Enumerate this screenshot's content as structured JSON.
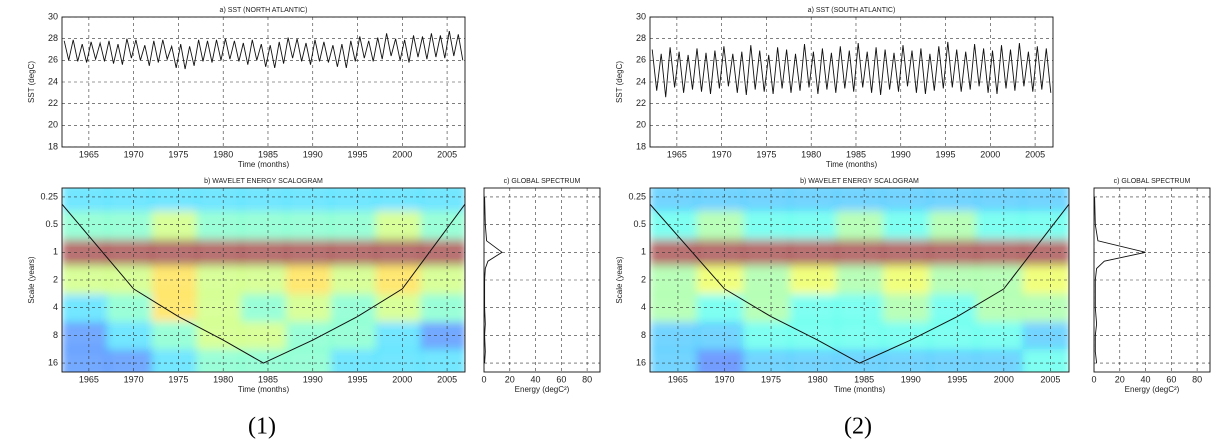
{
  "figure_labels": [
    "(1)",
    "(2)"
  ],
  "chart_data": [
    {
      "type": "line",
      "title": "a) SST (NORTH ATLANTIC)",
      "x_label": "Time (months)",
      "y_label": "SST (degC)",
      "xlim": [
        1962,
        2007
      ],
      "xticks": [
        1965,
        1970,
        1975,
        1980,
        1985,
        1990,
        1995,
        2000,
        2005
      ],
      "ylim": [
        18,
        30
      ],
      "yticks": [
        18,
        20,
        22,
        24,
        26,
        28,
        30
      ],
      "grid": true,
      "color": "#111111",
      "x": [
        1962.25,
        1962.75,
        1963.25,
        1963.75,
        1964.25,
        1964.75,
        1965.25,
        1965.75,
        1966.25,
        1966.75,
        1967.25,
        1967.75,
        1968.25,
        1968.75,
        1969.25,
        1969.75,
        1970.25,
        1970.75,
        1971.25,
        1971.75,
        1972.25,
        1972.75,
        1973.25,
        1973.75,
        1974.25,
        1974.75,
        1975.25,
        1975.75,
        1976.25,
        1976.75,
        1977.25,
        1977.75,
        1978.25,
        1978.75,
        1979.25,
        1979.75,
        1980.25,
        1980.75,
        1981.25,
        1981.75,
        1982.25,
        1982.75,
        1983.25,
        1983.75,
        1984.25,
        1984.75,
        1985.25,
        1985.75,
        1986.25,
        1986.75,
        1987.25,
        1987.75,
        1988.25,
        1988.75,
        1989.25,
        1989.75,
        1990.25,
        1990.75,
        1991.25,
        1991.75,
        1992.25,
        1992.75,
        1993.25,
        1993.75,
        1994.25,
        1994.75,
        1995.25,
        1995.75,
        1996.25,
        1996.75,
        1997.25,
        1997.75,
        1998.25,
        1998.75,
        1999.25,
        1999.75,
        2000.25,
        2000.75,
        2001.25,
        2001.75,
        2002.25,
        2002.75,
        2003.25,
        2003.75,
        2004.25,
        2004.75,
        2005.25,
        2005.75,
        2006.25,
        2006.75
      ],
      "values": [
        27.8,
        26.0,
        27.9,
        25.9,
        27.5,
        25.8,
        27.7,
        26.1,
        27.6,
        25.9,
        27.8,
        25.7,
        27.5,
        25.6,
        28.0,
        26.2,
        27.9,
        26.0,
        27.4,
        25.5,
        27.8,
        25.8,
        27.9,
        26.1,
        27.3,
        25.3,
        27.5,
        25.2,
        27.3,
        25.5,
        27.9,
        25.9,
        27.8,
        25.8,
        27.9,
        26.0,
        28.0,
        26.1,
        27.8,
        25.9,
        27.6,
        25.6,
        27.9,
        26.0,
        27.5,
        25.4,
        27.4,
        25.3,
        27.7,
        25.7,
        28.1,
        26.2,
        28.0,
        25.9,
        27.6,
        25.6,
        27.9,
        25.9,
        27.7,
        25.8,
        27.4,
        25.4,
        27.5,
        25.3,
        27.8,
        25.9,
        28.2,
        26.2,
        27.8,
        25.9,
        28.1,
        26.1,
        28.5,
        26.4,
        28.0,
        26.0,
        27.9,
        25.8,
        28.3,
        26.3,
        28.2,
        26.1,
        28.5,
        26.3,
        28.3,
        26.2,
        28.7,
        26.4,
        28.4,
        26.0
      ]
    },
    {
      "type": "heatmap",
      "title": "b) WAVELET ENERGY SCALOGRAM",
      "x_label": "Time (months)",
      "y_label": "Scale (years)",
      "xlim": [
        1962,
        2007
      ],
      "xticks": [
        1965,
        1970,
        1975,
        1980,
        1985,
        1990,
        1995,
        2000,
        2005
      ],
      "ylim": [
        0.2,
        20
      ],
      "yticks": [
        0.25,
        0.5,
        1,
        2,
        4,
        8,
        16
      ],
      "log_y": true,
      "y_reversed": true,
      "grid": true,
      "x": [
        1964.5,
        1969.5,
        1974.5,
        1979.5,
        1984.5,
        1989.5,
        1994.5,
        1999.5,
        2004.5
      ],
      "y": [
        0.25,
        0.5,
        1,
        2,
        4,
        8,
        16
      ],
      "z": [
        [
          3,
          3,
          3,
          3,
          3,
          3,
          3,
          3,
          3
        ],
        [
          4,
          4,
          5,
          4,
          4,
          4,
          4,
          5,
          4
        ],
        [
          9,
          9,
          9,
          9,
          9,
          9,
          9,
          9,
          9
        ],
        [
          5,
          5,
          6,
          5,
          5,
          6,
          5,
          6,
          5
        ],
        [
          3,
          4,
          6,
          5,
          4,
          5,
          4,
          5,
          4
        ],
        [
          2,
          3,
          4,
          5,
          5,
          4,
          4,
          3,
          2
        ],
        [
          2,
          2,
          3,
          4,
          4,
          4,
          3,
          3,
          3
        ]
      ],
      "cone_of_influence": {
        "x": [
          1962,
          1970,
          1975,
          1980,
          1984.5,
          1990,
          1995,
          2000,
          2007
        ],
        "y": [
          0.3,
          2.5,
          5,
          9,
          16,
          9,
          5,
          2.5,
          0.3
        ]
      }
    },
    {
      "type": "spectrum",
      "title": "c) GLOBAL SPECTRUM",
      "x_label": "Energy (degC²)",
      "xlim": [
        0,
        90
      ],
      "xticks": [
        0,
        20,
        40,
        60,
        80
      ],
      "ylim": [
        0.2,
        20
      ],
      "log_y": true,
      "y_reversed": true,
      "grid": true,
      "color": "#111111",
      "scales": [
        0.25,
        0.5,
        0.75,
        1,
        1.25,
        1.5,
        2,
        3,
        4,
        6,
        8,
        12,
        16
      ],
      "values": [
        0.5,
        1,
        2,
        14,
        3,
        1,
        0.5,
        0.5,
        0.5,
        1,
        0.5,
        1,
        0.5
      ]
    },
    {
      "type": "line",
      "title": "a) SST (SOUTH ATLANTIC)",
      "x_label": "Time (months)",
      "y_label": "SST (degC)",
      "xlim": [
        1962,
        2007
      ],
      "xticks": [
        1965,
        1970,
        1975,
        1980,
        1985,
        1990,
        1995,
        2000,
        2005
      ],
      "ylim": [
        18,
        30
      ],
      "yticks": [
        18,
        20,
        22,
        24,
        26,
        28,
        30
      ],
      "grid": true,
      "color": "#111111",
      "x": [
        1962.25,
        1962.75,
        1963.25,
        1963.75,
        1964.25,
        1964.75,
        1965.25,
        1965.75,
        1966.25,
        1966.75,
        1967.25,
        1967.75,
        1968.25,
        1968.75,
        1969.25,
        1969.75,
        1970.25,
        1970.75,
        1971.25,
        1971.75,
        1972.25,
        1972.75,
        1973.25,
        1973.75,
        1974.25,
        1974.75,
        1975.25,
        1975.75,
        1976.25,
        1976.75,
        1977.25,
        1977.75,
        1978.25,
        1978.75,
        1979.25,
        1979.75,
        1980.25,
        1980.75,
        1981.25,
        1981.75,
        1982.25,
        1982.75,
        1983.25,
        1983.75,
        1984.25,
        1984.75,
        1985.25,
        1985.75,
        1986.25,
        1986.75,
        1987.25,
        1987.75,
        1988.25,
        1988.75,
        1989.25,
        1989.75,
        1990.25,
        1990.75,
        1991.25,
        1991.75,
        1992.25,
        1992.75,
        1993.25,
        1993.75,
        1994.25,
        1994.75,
        1995.25,
        1995.75,
        1996.25,
        1996.75,
        1997.25,
        1997.75,
        1998.25,
        1998.75,
        1999.25,
        1999.75,
        2000.25,
        2000.75,
        2001.25,
        2001.75,
        2002.25,
        2002.75,
        2003.25,
        2003.75,
        2004.25,
        2004.75,
        2005.25,
        2005.75,
        2006.25,
        2006.75
      ],
      "values": [
        27.0,
        23.2,
        26.6,
        22.6,
        27.2,
        23.5,
        26.8,
        23.0,
        26.5,
        23.3,
        27.1,
        23.1,
        26.7,
        22.9,
        26.9,
        23.4,
        27.3,
        23.6,
        26.6,
        23.0,
        26.8,
        22.8,
        27.4,
        23.3,
        26.9,
        23.1,
        26.5,
        22.9,
        27.2,
        23.4,
        27.0,
        23.0,
        26.6,
        23.2,
        27.5,
        23.5,
        26.8,
        22.9,
        27.1,
        23.3,
        26.7,
        23.0,
        27.3,
        23.4,
        26.9,
        23.1,
        27.6,
        23.5,
        26.8,
        23.0,
        27.2,
        22.8,
        27.0,
        23.3,
        26.7,
        23.1,
        27.4,
        23.6,
        26.9,
        23.0,
        27.1,
        22.9,
        26.6,
        23.2,
        27.3,
        23.4,
        27.7,
        23.5,
        27.0,
        23.1,
        26.8,
        23.3,
        27.5,
        23.6,
        27.1,
        23.0,
        26.9,
        22.9,
        27.4,
        23.4,
        27.0,
        23.2,
        27.6,
        23.6,
        26.8,
        23.1,
        27.3,
        23.3,
        27.1,
        23.0
      ]
    },
    {
      "type": "heatmap",
      "title": "b) WAVELET ENERGY SCALOGRAM",
      "x_label": "Time (months)",
      "y_label": "Scale (years)",
      "xlim": [
        1962,
        2007
      ],
      "xticks": [
        1965,
        1970,
        1975,
        1980,
        1985,
        1990,
        1995,
        2000,
        2005
      ],
      "ylim": [
        0.2,
        20
      ],
      "yticks": [
        0.25,
        0.5,
        1,
        2,
        4,
        8,
        16
      ],
      "log_y": true,
      "y_reversed": true,
      "grid": true,
      "x": [
        1964.5,
        1969.5,
        1974.5,
        1979.5,
        1984.5,
        1989.5,
        1994.5,
        1999.5,
        2004.5
      ],
      "y": [
        0.25,
        0.5,
        1,
        2,
        4,
        8,
        16
      ],
      "z": [
        [
          3,
          3,
          3,
          3,
          3,
          3,
          3,
          3,
          3
        ],
        [
          4,
          5,
          4,
          4,
          5,
          4,
          5,
          4,
          4
        ],
        [
          10,
          10,
          10,
          10,
          10,
          10,
          10,
          10,
          10
        ],
        [
          5,
          6,
          5,
          6,
          5,
          6,
          5,
          5,
          6
        ],
        [
          5,
          4,
          5,
          4,
          4,
          5,
          4,
          5,
          5
        ],
        [
          3,
          3,
          4,
          4,
          4,
          4,
          4,
          4,
          3
        ],
        [
          3,
          2,
          3,
          3,
          3,
          3,
          3,
          3,
          4
        ]
      ],
      "cone_of_influence": {
        "x": [
          1962,
          1970,
          1975,
          1980,
          1984.5,
          1990,
          1995,
          2000,
          2007
        ],
        "y": [
          0.3,
          2.5,
          5,
          9,
          16,
          9,
          5,
          2.5,
          0.3
        ]
      }
    },
    {
      "type": "spectrum",
      "title": "c) GLOBAL SPECTRUM",
      "x_label": "Energy (degC²)",
      "xlim": [
        0,
        90
      ],
      "xticks": [
        0,
        20,
        40,
        60,
        80
      ],
      "ylim": [
        0.2,
        20
      ],
      "log_y": true,
      "y_reversed": true,
      "grid": true,
      "color": "#111111",
      "scales": [
        0.25,
        0.5,
        0.75,
        1,
        1.25,
        1.5,
        2,
        3,
        4,
        6,
        8,
        12,
        16
      ],
      "values": [
        0.5,
        1,
        3,
        40,
        8,
        2,
        1,
        1,
        1,
        2,
        1,
        1,
        2
      ]
    }
  ]
}
